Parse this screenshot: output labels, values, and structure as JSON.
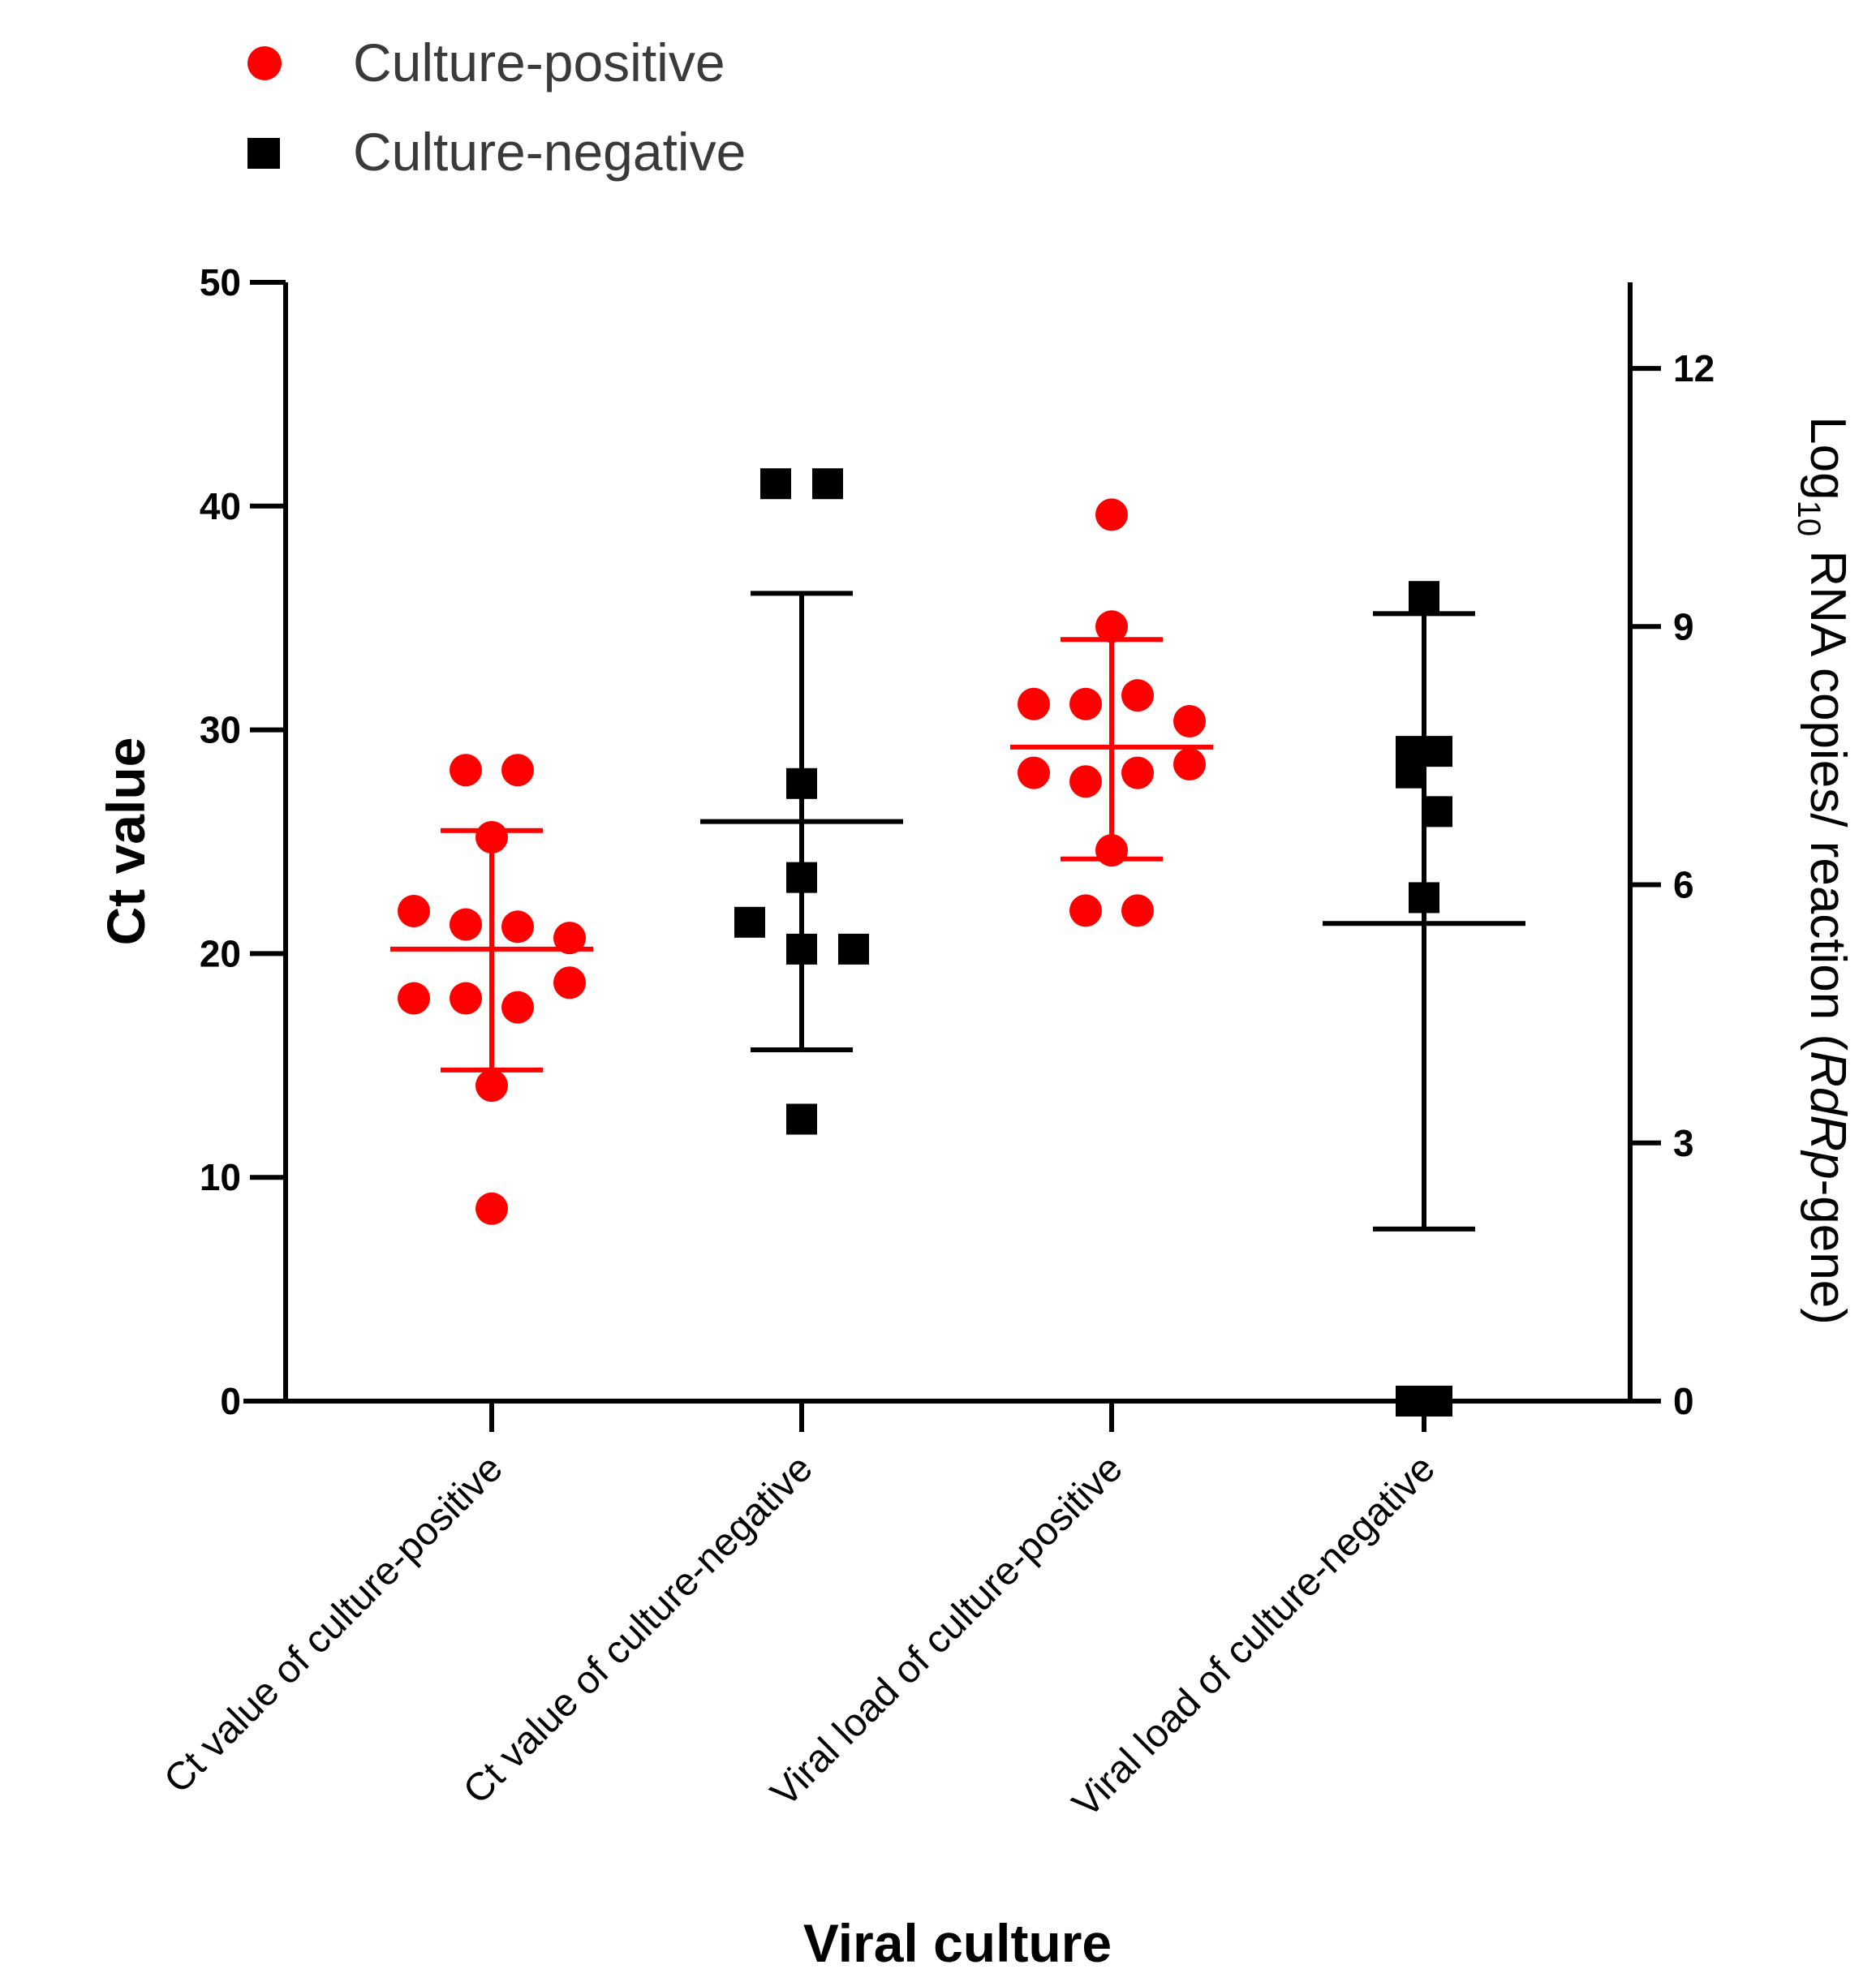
{
  "chart_data": {
    "type": "scatter",
    "legend": {
      "placement": "top-left",
      "entries": [
        {
          "label": "Culture-positive",
          "color": "#ff0000",
          "marker": "circle"
        },
        {
          "label": "Culture-negative",
          "color": "#000000",
          "marker": "square"
        }
      ]
    },
    "xlabel": "Viral culture",
    "ylabel": "Ct value",
    "ylabel_right": {
      "prefix": "Log",
      "subscript": "10",
      "middle": " RNA copies/ reaction (",
      "italic": "RdRp",
      "suffix": "-gene)"
    },
    "ylim": [
      0,
      50
    ],
    "yticks": [
      0,
      10,
      20,
      30,
      40,
      50
    ],
    "ylim_right": [
      0,
      13
    ],
    "yticks_right": [
      0,
      3,
      6,
      9,
      12
    ],
    "grid": false,
    "categories": [
      "Ct value of culture-positive",
      "Ct value of culture-negative",
      "Viral load of culture-positive",
      "Viral load of culture-negative"
    ],
    "groups": [
      {
        "category": "Ct value of culture-positive",
        "axis": "left",
        "color": "#ff0000",
        "marker": "circle",
        "points": [
          {
            "dx": -1,
            "y": 28.2
          },
          {
            "dx": 1,
            "y": 28.2
          },
          {
            "dx": 0,
            "y": 25.2
          },
          {
            "dx": -3,
            "y": 21.9
          },
          {
            "dx": -1,
            "y": 21.3
          },
          {
            "dx": 1,
            "y": 21.2
          },
          {
            "dx": 3,
            "y": 20.7
          },
          {
            "dx": 3,
            "y": 18.7
          },
          {
            "dx": -3,
            "y": 18.0
          },
          {
            "dx": -1,
            "y": 18.0
          },
          {
            "dx": 1,
            "y": 17.6
          },
          {
            "dx": 0,
            "y": 14.1
          },
          {
            "dx": 0,
            "y": 8.6
          }
        ],
        "mean": 20.2,
        "err_low": 14.8,
        "err_high": 25.5
      },
      {
        "category": "Ct value of culture-negative",
        "axis": "left",
        "color": "#000000",
        "marker": "square",
        "points": [
          {
            "dx": -1,
            "y": 41.0
          },
          {
            "dx": 1,
            "y": 41.0
          },
          {
            "dx": 0,
            "y": 27.6
          },
          {
            "dx": 0,
            "y": 23.4
          },
          {
            "dx": -2,
            "y": 21.4
          },
          {
            "dx": 0,
            "y": 20.2
          },
          {
            "dx": 2,
            "y": 20.2
          },
          {
            "dx": 0,
            "y": 12.6
          }
        ],
        "mean": 25.9,
        "err_low": 15.7,
        "err_high": 36.1
      },
      {
        "category": "Viral load of culture-positive",
        "axis": "right",
        "color": "#ff0000",
        "marker": "circle",
        "points": [
          {
            "dx": 0,
            "y": 10.3
          },
          {
            "dx": 0,
            "y": 9.0
          },
          {
            "dx": -3,
            "y": 8.1
          },
          {
            "dx": -1,
            "y": 8.1
          },
          {
            "dx": 1,
            "y": 8.2
          },
          {
            "dx": 3,
            "y": 7.9
          },
          {
            "dx": 3,
            "y": 7.4
          },
          {
            "dx": -3,
            "y": 7.3
          },
          {
            "dx": -1,
            "y": 7.2
          },
          {
            "dx": 1,
            "y": 7.3
          },
          {
            "dx": 0,
            "y": 6.4
          },
          {
            "dx": -1,
            "y": 5.7
          },
          {
            "dx": 1,
            "y": 5.7
          }
        ],
        "mean": 7.6,
        "err_low": 6.3,
        "err_high": 8.85
      },
      {
        "category": "Viral load of culture-negative",
        "axis": "right",
        "color": "#000000",
        "marker": "square",
        "points": [
          {
            "dx": 0,
            "y": 9.35
          },
          {
            "dx": -0.5,
            "y": 7.55
          },
          {
            "dx": 0.5,
            "y": 7.55
          },
          {
            "dx": -0.5,
            "y": 7.3
          },
          {
            "dx": 0.5,
            "y": 6.85
          },
          {
            "dx": 0,
            "y": 5.85
          },
          {
            "dx": -0.5,
            "y": 0
          },
          {
            "dx": 0.5,
            "y": 0
          }
        ],
        "mean": 5.55,
        "err_low": 2.0,
        "err_high": 9.15
      }
    ]
  }
}
